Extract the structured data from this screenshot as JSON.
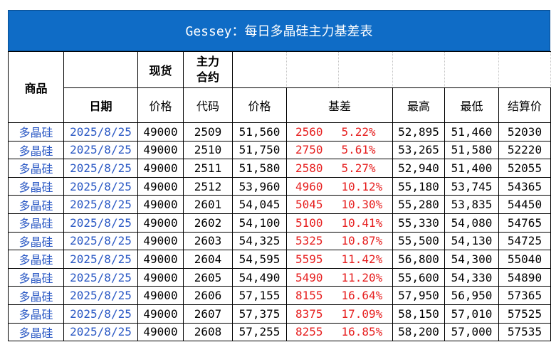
{
  "title": "Gessey：每日多晶硅主力基差表",
  "headers": {
    "product": "商品",
    "date": "日期",
    "spot": "现货",
    "spot_price": "价格",
    "main_contract": "主力\n合约",
    "code": "代码",
    "price": "价格",
    "basis": "基差",
    "high": "最高",
    "low": "最低",
    "settle": "结算价"
  },
  "rows": [
    {
      "product": "多晶硅",
      "date": "2025/8/25",
      "spot": "49000",
      "code": "2509",
      "price": "51,560",
      "basis": "2560",
      "pct": "5.22%",
      "high": "52,895",
      "low": "51,460",
      "settle": "52030"
    },
    {
      "product": "多晶硅",
      "date": "2025/8/25",
      "spot": "49000",
      "code": "2510",
      "price": "51,750",
      "basis": "2750",
      "pct": "5.61%",
      "high": "53,265",
      "low": "51,580",
      "settle": "52220"
    },
    {
      "product": "多晶硅",
      "date": "2025/8/25",
      "spot": "49000",
      "code": "2511",
      "price": "51,580",
      "basis": "2580",
      "pct": "5.27%",
      "high": "52,940",
      "low": "51,400",
      "settle": "52055"
    },
    {
      "product": "多晶硅",
      "date": "2025/8/25",
      "spot": "49000",
      "code": "2512",
      "price": "53,960",
      "basis": "4960",
      "pct": "10.12%",
      "high": "55,180",
      "low": "53,745",
      "settle": "54365"
    },
    {
      "product": "多晶硅",
      "date": "2025/8/25",
      "spot": "49000",
      "code": "2601",
      "price": "54,045",
      "basis": "5045",
      "pct": "10.30%",
      "high": "55,280",
      "low": "53,835",
      "settle": "54450"
    },
    {
      "product": "多晶硅",
      "date": "2025/8/25",
      "spot": "49000",
      "code": "2602",
      "price": "54,100",
      "basis": "5100",
      "pct": "10.41%",
      "high": "55,330",
      "low": "54,080",
      "settle": "54765"
    },
    {
      "product": "多晶硅",
      "date": "2025/8/25",
      "spot": "49000",
      "code": "2603",
      "price": "54,325",
      "basis": "5325",
      "pct": "10.87%",
      "high": "55,500",
      "low": "54,130",
      "settle": "54725"
    },
    {
      "product": "多晶硅",
      "date": "2025/8/25",
      "spot": "49000",
      "code": "2604",
      "price": "54,595",
      "basis": "5595",
      "pct": "11.42%",
      "high": "56,800",
      "low": "54,300",
      "settle": "55040"
    },
    {
      "product": "多晶硅",
      "date": "2025/8/25",
      "spot": "49000",
      "code": "2605",
      "price": "54,490",
      "basis": "5490",
      "pct": "11.20%",
      "high": "55,600",
      "low": "54,330",
      "settle": "54890"
    },
    {
      "product": "多晶硅",
      "date": "2025/8/25",
      "spot": "49000",
      "code": "2606",
      "price": "57,155",
      "basis": "8155",
      "pct": "16.64%",
      "high": "57,950",
      "low": "56,950",
      "settle": "57365"
    },
    {
      "product": "多晶硅",
      "date": "2025/8/25",
      "spot": "49000",
      "code": "2607",
      "price": "57,375",
      "basis": "8375",
      "pct": "17.09%",
      "high": "58,150",
      "low": "57,010",
      "settle": "57525"
    },
    {
      "product": "多晶硅",
      "date": "2025/8/25",
      "spot": "49000",
      "code": "2608",
      "price": "57,255",
      "basis": "8255",
      "pct": "16.85%",
      "high": "58,200",
      "low": "57,000",
      "settle": "57535"
    }
  ],
  "colors": {
    "title_bg": "#0f6cc6",
    "link_blue": "#2a58c4",
    "basis_red": "#e61d1d"
  }
}
